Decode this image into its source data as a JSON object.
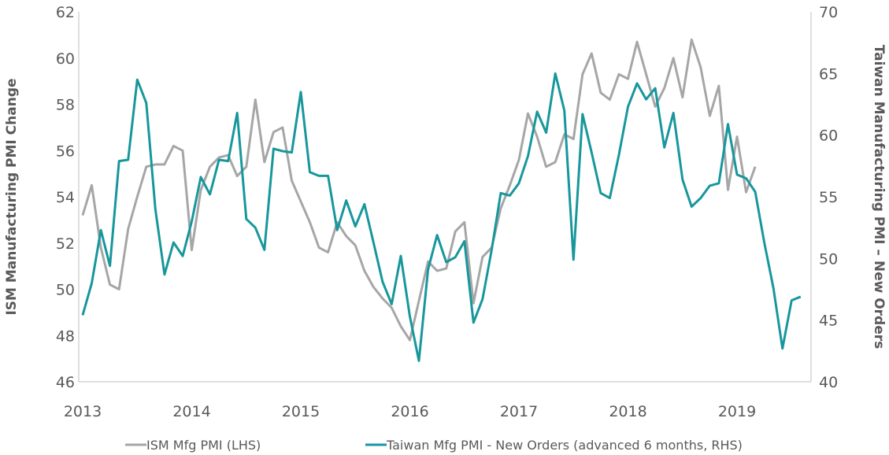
{
  "chart_data": {
    "type": "line",
    "title": "",
    "xlabel": "",
    "ylabel_left": "ISM Manufacturing PMI Change",
    "ylabel_right": "Taiwan Manufacturing PMI – New Orders",
    "ylim_left": [
      46,
      62
    ],
    "ylim_right": [
      40,
      70
    ],
    "yticks_left": [
      46,
      48,
      50,
      52,
      54,
      56,
      58,
      60,
      62
    ],
    "yticks_right": [
      40,
      45,
      50,
      55,
      60,
      65,
      70
    ],
    "xlim": [
      2013,
      2019.75
    ],
    "xticks": [
      2013,
      2014,
      2015,
      2016,
      2017,
      2018,
      2019
    ],
    "grid": false,
    "legend_position": "bottom",
    "colors": {
      "ism": "#a6a6a6",
      "taiwan": "#17979c",
      "axis": "#bfbfbf",
      "text": "#595959"
    },
    "series": [
      {
        "name": "ISM Mfg PMI (LHS)",
        "axis": "left",
        "x_start": 2013.0,
        "x_step_months": 1,
        "values": [
          53.2,
          54.5,
          51.8,
          50.2,
          50.0,
          52.6,
          54.0,
          55.3,
          55.4,
          55.4,
          56.2,
          56.0,
          51.7,
          54.3,
          55.3,
          55.7,
          55.8,
          54.9,
          55.3,
          58.2,
          55.5,
          56.8,
          57.0,
          54.7,
          53.8,
          52.9,
          51.8,
          51.6,
          52.9,
          52.3,
          51.9,
          50.8,
          50.1,
          49.6,
          49.2,
          48.4,
          47.8,
          49.5,
          51.2,
          50.8,
          50.9,
          52.5,
          52.9,
          49.4,
          51.4,
          51.8,
          53.5,
          54.5,
          55.6,
          57.6,
          56.6,
          55.3,
          55.5,
          56.7,
          56.5,
          59.3,
          60.2,
          58.5,
          58.2,
          59.3,
          59.1,
          60.7,
          59.3,
          57.9,
          58.7,
          60.0,
          58.3,
          60.8,
          59.6,
          57.5,
          58.8,
          54.3,
          56.6,
          54.2,
          55.3
        ]
      },
      {
        "name": "Taiwan Mfg PMI - New Orders (advanced 6 months, RHS)",
        "axis": "right",
        "x_start": 2013.0,
        "x_step_months": 1,
        "values": [
          45.4,
          48.0,
          52.3,
          49.4,
          57.9,
          58.0,
          64.5,
          62.6,
          54.0,
          48.7,
          51.3,
          50.2,
          53.0,
          56.6,
          55.2,
          58.0,
          57.9,
          61.8,
          53.2,
          52.5,
          50.7,
          58.9,
          58.7,
          58.6,
          63.5,
          57.0,
          56.7,
          56.7,
          52.3,
          54.7,
          52.6,
          54.4,
          51.3,
          48.1,
          46.3,
          50.2,
          45.3,
          41.7,
          49.1,
          51.9,
          49.7,
          50.1,
          51.4,
          44.8,
          46.7,
          50.7,
          55.3,
          55.1,
          56.1,
          58.3,
          61.9,
          60.2,
          65.0,
          62.0,
          49.9,
          61.7,
          58.6,
          55.3,
          54.9,
          58.4,
          62.3,
          64.2,
          62.9,
          63.8,
          59.0,
          61.8,
          56.4,
          54.2,
          54.9,
          55.9,
          56.1,
          60.9,
          56.8,
          56.5,
          55.4,
          51.3,
          47.6,
          42.7,
          46.6,
          46.9
        ]
      }
    ]
  }
}
